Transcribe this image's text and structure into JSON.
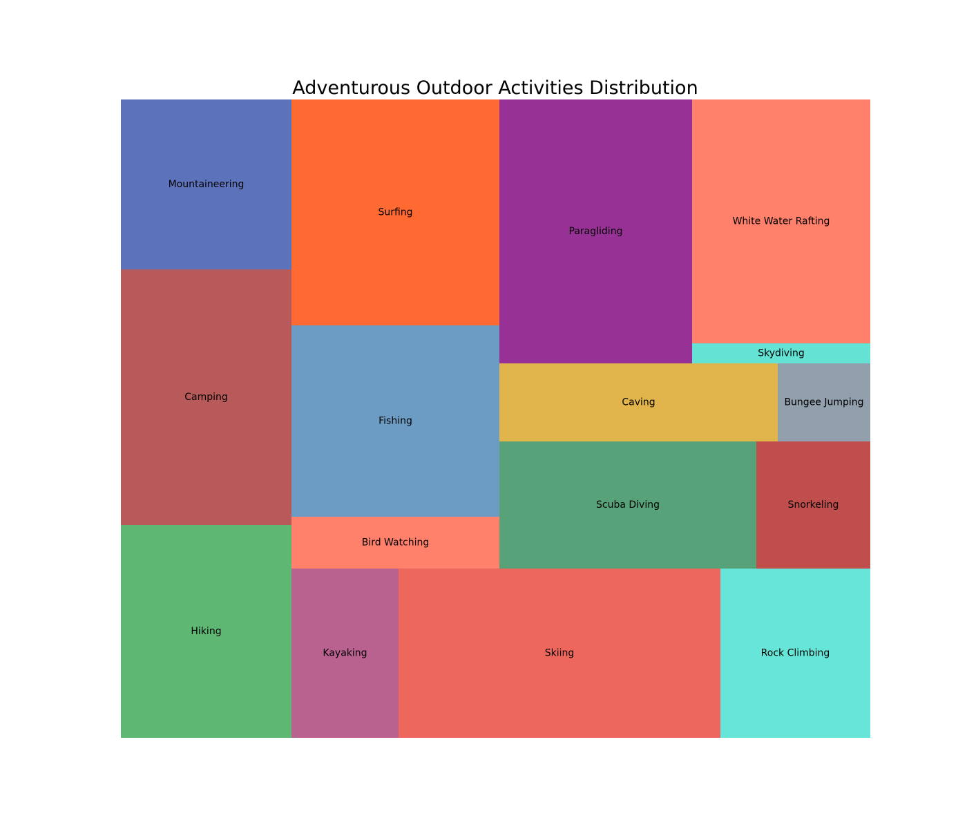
{
  "chart_data": {
    "type": "treemap",
    "title": "Adventurous Outdoor Activities Distribution",
    "values_note": "",
    "items": [
      {
        "label": "Mountaineering",
        "value": 6.08,
        "color": "#5c72ba"
      },
      {
        "label": "Camping",
        "value": 9.19,
        "color": "#b75a59"
      },
      {
        "label": "Hiking",
        "value": 7.62,
        "color": "#5eb874"
      },
      {
        "label": "Surfing",
        "value": 9.89,
        "color": "#ff6a33"
      },
      {
        "label": "Fishing",
        "value": 8.38,
        "color": "#6c9cc4"
      },
      {
        "label": "Bird Watching",
        "value": 2.27,
        "color": "#ff806b"
      },
      {
        "label": "Paragliding",
        "value": 10.73,
        "color": "#983196"
      },
      {
        "label": "White Water Rafting",
        "value": 9.19,
        "color": "#ff806b"
      },
      {
        "label": "Skydiving",
        "value": 0.76,
        "color": "#64e3d5"
      },
      {
        "label": "Caving",
        "value": 4.56,
        "color": "#e1b54c"
      },
      {
        "label": "Bungee Jumping",
        "value": 1.52,
        "color": "#929fac"
      },
      {
        "label": "Scuba Diving",
        "value": 6.91,
        "color": "#57a279"
      },
      {
        "label": "Snorkeling",
        "value": 3.05,
        "color": "#c04e4d"
      },
      {
        "label": "Kayaking",
        "value": 3.84,
        "color": "#b9618f"
      },
      {
        "label": "Skiing",
        "value": 11.45,
        "color": "#ee675c"
      },
      {
        "label": "Rock Climbing",
        "value": 5.33,
        "color": "#66e5d8"
      }
    ]
  }
}
